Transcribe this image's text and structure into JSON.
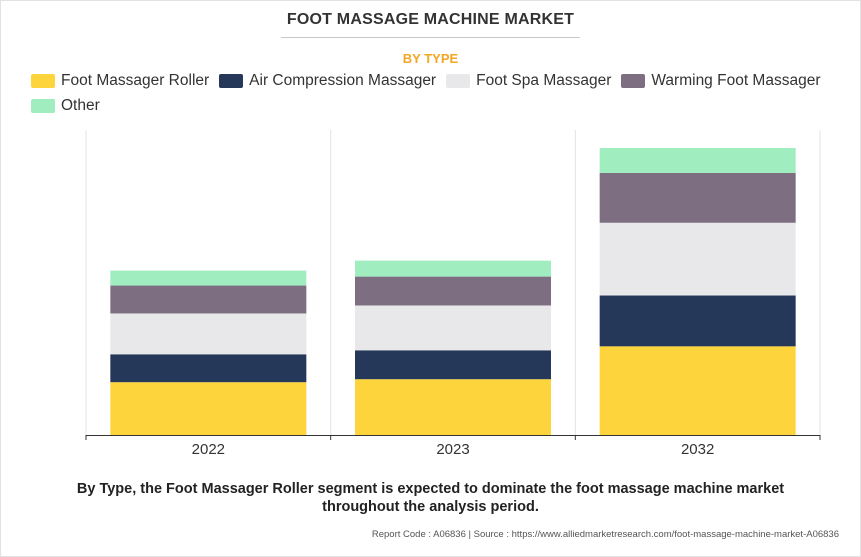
{
  "title": "FOOT MASSAGE MACHINE MARKET",
  "subtitle": "BY TYPE",
  "caption_line1": "By Type, the Foot Massager Roller segment is expected to dominate the foot massage machine market",
  "caption_line2": "throughout the analysis period.",
  "source": "Report Code : A06836  |  Source : https://www.alliedmarketresearch.com/foot-massage-machine-market-A06836",
  "chart_data": {
    "type": "bar",
    "stacked": true,
    "categories": [
      "2022",
      "2023",
      "2032"
    ],
    "series": [
      {
        "name": "Foot Massager Roller",
        "color": "#fdd43b",
        "values": [
          53,
          56,
          89
        ]
      },
      {
        "name": "Air Compression Massager",
        "color": "#263859",
        "values": [
          28,
          29,
          51
        ]
      },
      {
        "name": "Foot Spa Massager",
        "color": "#e8e8ea",
        "values": [
          41,
          45,
          73
        ]
      },
      {
        "name": "Warming Foot Massager",
        "color": "#7d6e82",
        "values": [
          28,
          29,
          50
        ]
      },
      {
        "name": "Other",
        "color": "#a0edbf",
        "values": [
          15,
          16,
          25
        ]
      }
    ],
    "ylim": [
      0,
      300
    ],
    "grid": false,
    "legend_position": "top"
  }
}
